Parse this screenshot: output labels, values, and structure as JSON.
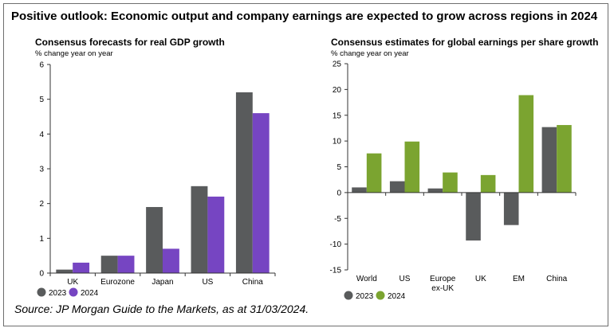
{
  "title": "Positive outlook: Economic output and company earnings are expected to grow across regions in 2024",
  "source": "Source: JP Morgan Guide to the Markets, as at 31/03/2024.",
  "colors": {
    "gray": "#595b5c",
    "purple": "#7645c2",
    "green": "#7ba430"
  },
  "chart_data": [
    {
      "type": "bar",
      "title": "Consensus forecasts for real GDP growth",
      "unit_label": "% change year on year",
      "categories": [
        "UK",
        "Eurozone",
        "Japan",
        "US",
        "China"
      ],
      "series": [
        {
          "name": "2023",
          "color": "#595b5c",
          "values": [
            0.1,
            0.5,
            1.9,
            2.5,
            5.2
          ]
        },
        {
          "name": "2024",
          "color": "#7645c2",
          "values": [
            0.3,
            0.5,
            0.7,
            2.2,
            4.6
          ]
        }
      ],
      "ylim": [
        0,
        6
      ],
      "yticks": [
        0,
        1,
        2,
        3,
        4,
        5,
        6
      ],
      "legend": "bottom-left",
      "grid": false
    },
    {
      "type": "bar",
      "title": "Consensus estimates for global earnings per share growth",
      "unit_label": "% change year on year",
      "categories": [
        "World",
        "US",
        "Europe ex-UK",
        "UK",
        "EM",
        "China"
      ],
      "category_lines": [
        [
          "World"
        ],
        [
          "US"
        ],
        [
          "Europe",
          "ex-UK"
        ],
        [
          "UK"
        ],
        [
          "EM"
        ],
        [
          "China"
        ]
      ],
      "series": [
        {
          "name": "2023",
          "color": "#595b5c",
          "values": [
            1.0,
            2.2,
            0.8,
            -9.3,
            -6.3,
            12.7
          ]
        },
        {
          "name": "2024",
          "color": "#7ba430",
          "values": [
            7.6,
            9.9,
            3.9,
            3.4,
            18.9,
            13.1
          ]
        }
      ],
      "ylim": [
        -15,
        25
      ],
      "yticks": [
        -15,
        -10,
        -5,
        0,
        5,
        10,
        15,
        20,
        25
      ],
      "legend": "bottom-left",
      "grid": false
    }
  ]
}
